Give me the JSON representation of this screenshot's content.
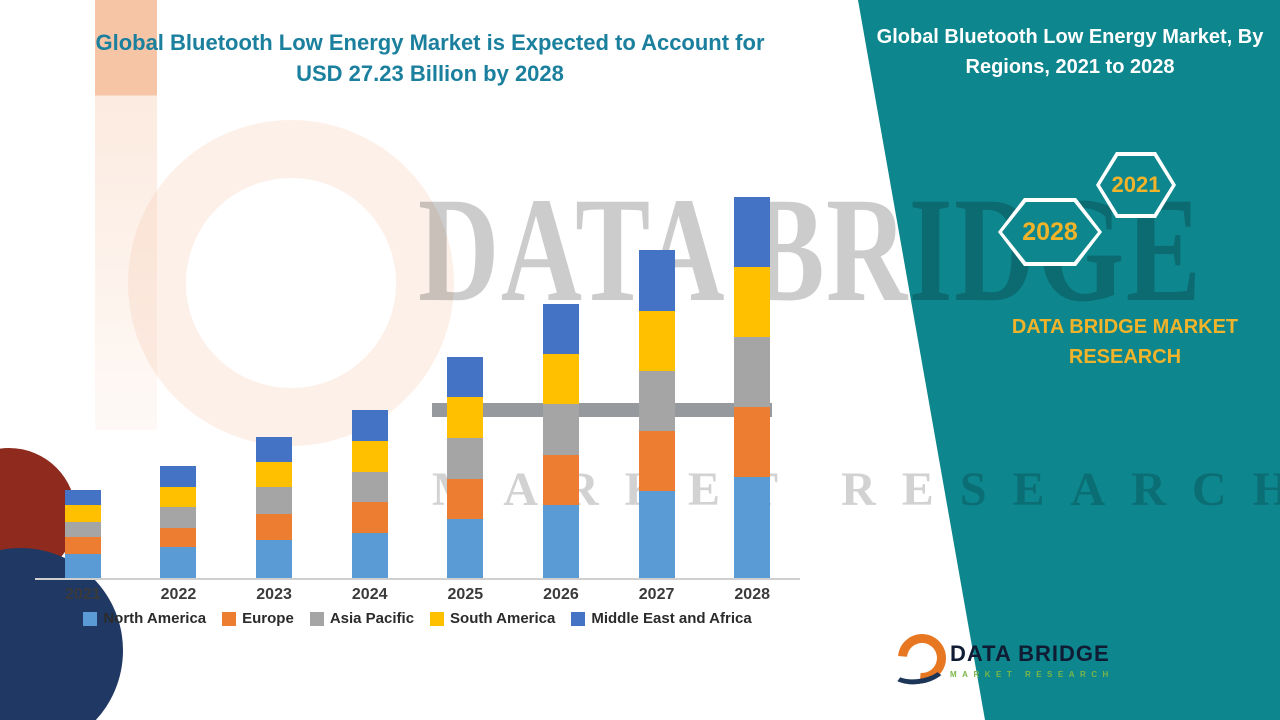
{
  "colors": {
    "teal": "#0d868d",
    "yellow": "#f0b32a",
    "title_teal": "#1b7f9e",
    "white": "#ffffff"
  },
  "chart_title": {
    "line1": "Global Bluetooth Low Energy Market is Expected to Account for",
    "line2": "USD 27.23 Billion by 2028"
  },
  "banner": {
    "heading": "Global Bluetooth Low Energy Market, By Regions, 2021 to 2028",
    "badge_2028": "2028",
    "badge_2021": "2021",
    "brand_line1": "DATA BRIDGE MARKET",
    "brand_line2": "RESEARCH"
  },
  "watermark": {
    "line1": "DATA BRIDGE",
    "line2": "MARKET RESEARCH"
  },
  "footer_logo": {
    "name": "DATA BRIDGE",
    "subtext": "MARKET RESEARCH"
  },
  "chart_data": {
    "type": "bar",
    "stacked": true,
    "title": "Global Bluetooth Low Energy Market is Expected to Account for USD 27.23 Billion by 2028",
    "units": "USD Billion",
    "values_are_estimates": true,
    "categories": [
      "2021",
      "2022",
      "2023",
      "2024",
      "2025",
      "2026",
      "2027",
      "2028"
    ],
    "series": [
      {
        "name": "North America",
        "color": "#5b9bd5",
        "values": [
          1.7,
          2.2,
          2.7,
          3.2,
          4.2,
          5.2,
          6.2,
          7.2
        ]
      },
      {
        "name": "Europe",
        "color": "#ed7d31",
        "values": [
          1.2,
          1.4,
          1.9,
          2.2,
          2.9,
          3.6,
          4.3,
          5.0
        ]
      },
      {
        "name": "Asia Pacific",
        "color": "#a5a5a5",
        "values": [
          1.1,
          1.5,
          1.9,
          2.2,
          2.9,
          3.6,
          4.3,
          5.0
        ]
      },
      {
        "name": "South America",
        "color": "#ffc000",
        "values": [
          1.2,
          1.4,
          1.8,
          2.2,
          2.9,
          3.6,
          4.3,
          5.0
        ]
      },
      {
        "name": "Middle East and Africa",
        "color": "#4472c4",
        "values": [
          1.1,
          1.5,
          1.8,
          2.2,
          2.9,
          3.6,
          4.3,
          5.03
        ]
      }
    ],
    "totals": [
      6.3,
      8.0,
      10.1,
      12.0,
      15.8,
      19.6,
      23.4,
      27.23
    ],
    "xlabel": "",
    "ylabel": "",
    "ylim": [
      0,
      30
    ],
    "grid": false,
    "legend_position": "bottom"
  }
}
